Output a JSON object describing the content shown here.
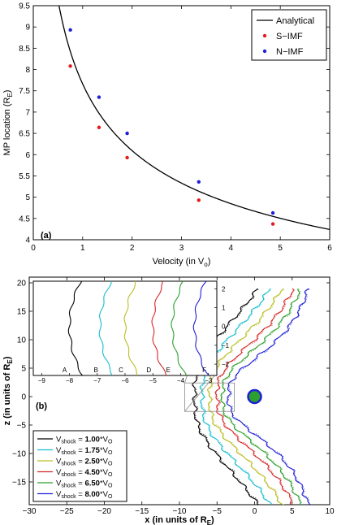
{
  "chart_data": [
    {
      "type": "scatter",
      "panel_label": "(a)",
      "xlabel": "Velocity (in V",
      "xlabel_sub": "o",
      "xlabel_end": ")",
      "ylabel": "MP location (R",
      "ylabel_sub": "E",
      "ylabel_end": ")",
      "xlim": [
        0,
        6
      ],
      "ylim": [
        4,
        9.5
      ],
      "xticks": [
        "0",
        "1",
        "2",
        "3",
        "4",
        "5",
        "6"
      ],
      "yticks": [
        "4",
        "4.5",
        "5",
        "5.5",
        "6",
        "6.5",
        "7",
        "7.5",
        "8",
        "8.5",
        "9",
        "9.5"
      ],
      "legend_position": "top-right",
      "series": [
        {
          "name": "Analytical",
          "kind": "line",
          "color": "#000000"
        },
        {
          "name": "S−IMF",
          "kind": "points",
          "color": "#e41a1c",
          "x": [
            0.75,
            1.33,
            1.9,
            3.35,
            4.85
          ],
          "y": [
            8.08,
            6.64,
            5.93,
            4.93,
            4.37
          ]
        },
        {
          "name": "N−IMF",
          "kind": "points",
          "color": "#1f1fd6",
          "x": [
            0.75,
            1.33,
            1.9,
            3.35,
            4.85
          ],
          "y": [
            8.93,
            7.35,
            6.5,
            5.36,
            4.63
          ]
        }
      ]
    },
    {
      "type": "line",
      "panel_label": "(b)",
      "xlabel": "x (in units of R",
      "xlabel_sub": "E",
      "xlabel_end": ")",
      "ylabel": "z (in units of R",
      "ylabel_sub": "E",
      "ylabel_end": ")",
      "xlim": [
        -30,
        10
      ],
      "ylim": [
        -19,
        21
      ],
      "xticks": [
        "−30",
        "−25",
        "−20",
        "−15",
        "−10",
        "−5",
        "0",
        "5",
        "10"
      ],
      "yticks": [
        "−15",
        "−10",
        "−5",
        "0",
        "5",
        "10",
        "15",
        "20"
      ],
      "legend_position": "bottom-left",
      "series": [
        {
          "name": "V",
          "sub": "shock",
          "eq": " = ",
          "val": "1.00",
          "unit": "*V",
          "unitsub": "O",
          "color": "#000000",
          "nose": -8.0,
          "tail": -18.0
        },
        {
          "name": "V",
          "sub": "shock",
          "eq": " = ",
          "val": "1.75",
          "unit": "*V",
          "unitsub": "O",
          "color": "#17becf",
          "nose": -7.0,
          "tail": -15.5
        },
        {
          "name": "V",
          "sub": "shock",
          "eq": " = ",
          "val": "2.50",
          "unit": "*V",
          "unitsub": "O",
          "color": "#bcbd22",
          "nose": -6.0,
          "tail": -13.0
        },
        {
          "name": "V",
          "sub": "shock",
          "eq": " = ",
          "val": "4.50",
          "unit": "*V",
          "unitsub": "O",
          "color": "#d62728",
          "nose": -5.0,
          "tail": -11.0
        },
        {
          "name": "V",
          "sub": "shock",
          "eq": " = ",
          "val": "6.50",
          "unit": "*V",
          "unitsub": "O",
          "color": "#2ca02c",
          "nose": -4.3,
          "tail": -10.5
        },
        {
          "name": "V",
          "sub": "shock",
          "eq": " = ",
          "val": "8.00",
          "unit": "*V",
          "unitsub": "O",
          "color": "#1f1fd6",
          "nose": -3.5,
          "tail": -9.5
        }
      ],
      "earth_color": "#2ca02c",
      "earth_ring": "#1f1fd6",
      "inset": {
        "xlim": [
          -9.3,
          -2.7
        ],
        "ylim": [
          -2.6,
          2.4
        ],
        "xticks": [
          "−9",
          "−8",
          "−7",
          "−6",
          "−5",
          "−4",
          "−3"
        ],
        "yticks": [
          "−2",
          "−1",
          "0",
          "1",
          "2"
        ],
        "letters": [
          "A",
          "B",
          "C",
          "D",
          "E",
          "F"
        ]
      }
    }
  ]
}
